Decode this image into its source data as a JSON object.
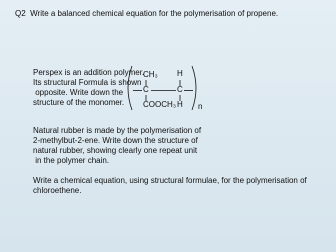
{
  "question": {
    "title": "Q2  Write a balanced chemical equation for the polymerisation of propene."
  },
  "perspex": {
    "lines": [
      "Perspex is an addition polymer.",
      "Its structural Formula is shown",
      " opposite. Write down the",
      "structure of the monomer."
    ]
  },
  "formula": {
    "top_left": "CH₃",
    "top_right": "H",
    "left_atom": "C",
    "right_atom": "C",
    "bottom_left": "COOCH₃",
    "bottom_right": "H",
    "repeat": "n"
  },
  "rubber": {
    "lines": [
      "Natural rubber is made by the polymerisation of",
      "2-methylbut-2-ene. Write down the structure of",
      "natural rubber, showing clearly one repeat unit",
      " in the polymer chain."
    ]
  },
  "chloroethene": {
    "lines": [
      "Write a chemical equation, using structural formulae, for the polymerisation of",
      "chloroethene."
    ]
  }
}
